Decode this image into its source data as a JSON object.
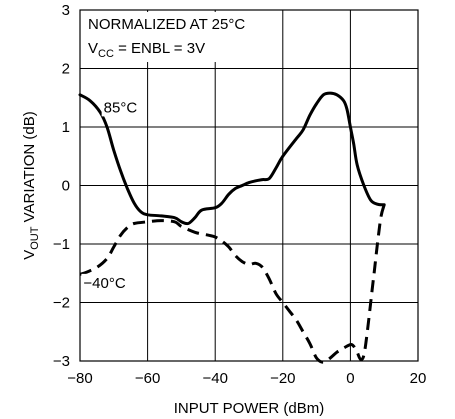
{
  "chart_data": {
    "type": "line",
    "xlabel": "INPUT POWER (dBm)",
    "ylabel": {
      "prefix": "V",
      "subscript": "OUT",
      "suffix": " VARIATION (dB)"
    },
    "xlim": [
      -80,
      20
    ],
    "ylim": [
      -3,
      3
    ],
    "xticks": [
      -80,
      -60,
      -40,
      -20,
      0,
      20
    ],
    "xtick_labels": [
      "−80",
      "−60",
      "−40",
      "−20",
      "0",
      "20"
    ],
    "yticks": [
      -3,
      -2,
      -1,
      0,
      1,
      2,
      3
    ],
    "ytick_labels": [
      "−3",
      "−2",
      "−1",
      "0",
      "1",
      "2",
      "3"
    ],
    "grid": true,
    "annotations": {
      "line1": "NORMALIZED AT 25°C",
      "line2": {
        "prefix": "V",
        "subscript": "CC",
        "suffix": " = ENBL = 3V"
      }
    },
    "series": [
      {
        "name": "85°C",
        "style": "solid",
        "color": "#000000",
        "points": [
          [
            -80,
            1.55
          ],
          [
            -77,
            1.45
          ],
          [
            -74,
            1.25
          ],
          [
            -72,
            1.0
          ],
          [
            -70,
            0.6
          ],
          [
            -68,
            0.25
          ],
          [
            -66,
            -0.05
          ],
          [
            -64,
            -0.3
          ],
          [
            -62,
            -0.45
          ],
          [
            -60,
            -0.5
          ],
          [
            -56,
            -0.52
          ],
          [
            -52,
            -0.55
          ],
          [
            -50,
            -0.62
          ],
          [
            -48,
            -0.65
          ],
          [
            -46,
            -0.55
          ],
          [
            -44,
            -0.42
          ],
          [
            -40,
            -0.38
          ],
          [
            -38,
            -0.3
          ],
          [
            -36,
            -0.15
          ],
          [
            -34,
            -0.05
          ],
          [
            -32,
            0.0
          ],
          [
            -30,
            0.05
          ],
          [
            -28,
            0.08
          ],
          [
            -26,
            0.1
          ],
          [
            -24,
            0.12
          ],
          [
            -22,
            0.3
          ],
          [
            -20,
            0.5
          ],
          [
            -16,
            0.8
          ],
          [
            -14,
            0.95
          ],
          [
            -12,
            1.2
          ],
          [
            -10,
            1.4
          ],
          [
            -8,
            1.55
          ],
          [
            -6,
            1.58
          ],
          [
            -4,
            1.55
          ],
          [
            -2,
            1.45
          ],
          [
            -1,
            1.3
          ],
          [
            0,
            1.0
          ],
          [
            1,
            0.7
          ],
          [
            2,
            0.35
          ],
          [
            4,
            0.0
          ],
          [
            6,
            -0.25
          ],
          [
            8,
            -0.32
          ],
          [
            10,
            -0.33
          ]
        ]
      },
      {
        "name": "−40°C",
        "style": "dashed",
        "color": "#000000",
        "points": [
          [
            -80,
            -1.52
          ],
          [
            -78,
            -1.48
          ],
          [
            -75,
            -1.4
          ],
          [
            -72,
            -1.25
          ],
          [
            -70,
            -1.05
          ],
          [
            -68,
            -0.85
          ],
          [
            -66,
            -0.72
          ],
          [
            -64,
            -0.65
          ],
          [
            -60,
            -0.62
          ],
          [
            -56,
            -0.6
          ],
          [
            -52,
            -0.62
          ],
          [
            -50,
            -0.7
          ],
          [
            -46,
            -0.8
          ],
          [
            -42,
            -0.85
          ],
          [
            -40,
            -0.88
          ],
          [
            -38,
            -0.95
          ],
          [
            -36,
            -1.05
          ],
          [
            -34,
            -1.2
          ],
          [
            -32,
            -1.3
          ],
          [
            -30,
            -1.35
          ],
          [
            -28,
            -1.33
          ],
          [
            -26,
            -1.4
          ],
          [
            -24,
            -1.6
          ],
          [
            -22,
            -1.85
          ],
          [
            -20,
            -2.0
          ],
          [
            -18,
            -2.15
          ],
          [
            -16,
            -2.3
          ],
          [
            -14,
            -2.5
          ],
          [
            -12,
            -2.7
          ],
          [
            -10,
            -2.95
          ],
          [
            -8,
            -3.02
          ],
          [
            -6,
            -2.95
          ],
          [
            -4,
            -2.85
          ],
          [
            -2,
            -2.78
          ],
          [
            0,
            -2.72
          ],
          [
            1,
            -2.75
          ],
          [
            2,
            -2.85
          ],
          [
            3,
            -2.97
          ],
          [
            4,
            -2.9
          ],
          [
            5,
            -2.5
          ],
          [
            6,
            -2.0
          ],
          [
            7,
            -1.5
          ],
          [
            8,
            -1.0
          ],
          [
            9,
            -0.55
          ],
          [
            10,
            -0.33
          ]
        ]
      }
    ]
  }
}
